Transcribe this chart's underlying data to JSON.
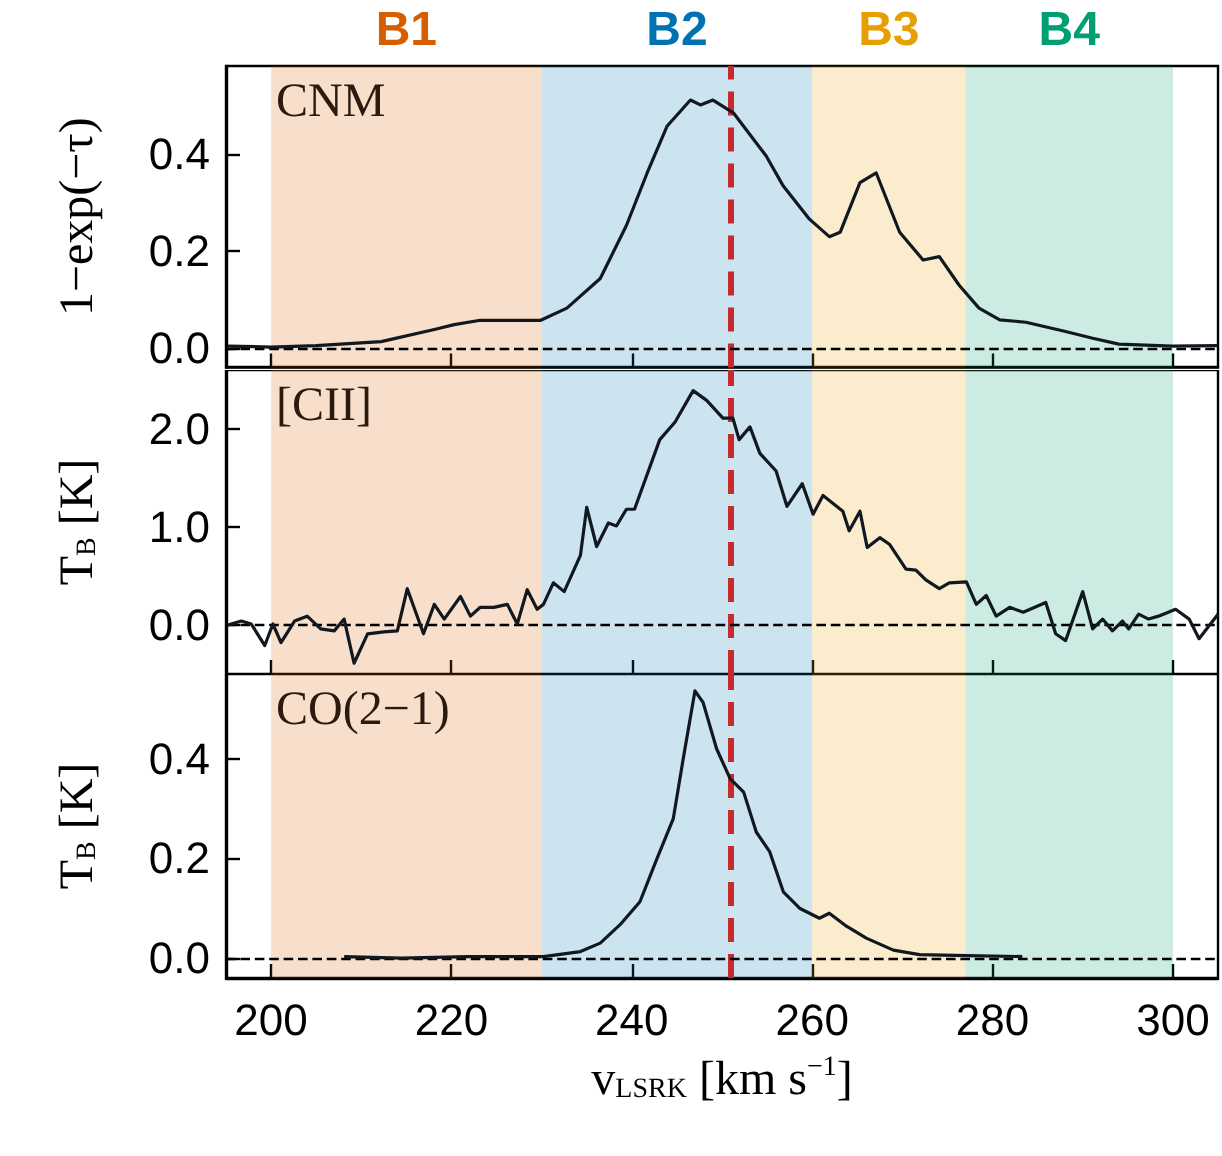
{
  "chart_data": [
    {
      "type": "line",
      "ylabel": "1−exp(−τ)",
      "annotations": [
        "CNM"
      ],
      "xlim": [
        195,
        305
      ],
      "xticks": [
        200,
        220,
        240,
        260,
        280,
        300
      ],
      "ylim": [
        -0.04,
        0.58
      ],
      "yticks": [
        {
          "value": 0,
          "label": "0.0"
        },
        {
          "value": 0.2,
          "label": "0.2"
        },
        {
          "value": 0.4,
          "label": "0.4"
        }
      ],
      "tick_labels": "y",
      "series": [
        {
          "color": "#111820",
          "x": [
            195.2,
            200,
            205,
            212.2,
            218.1,
            220.3,
            223.2,
            229.9,
            232.8,
            236.5,
            239.4,
            241.7,
            243.9,
            246.5,
            247.6,
            249.0,
            251.3,
            254.9,
            256.8,
            259.7,
            261.9,
            263.1,
            265.3,
            267.1,
            269.7,
            272.3,
            274.1,
            276.3,
            278.5,
            280.8,
            283.7,
            288.1,
            291.1,
            294.0,
            299.9,
            305
          ],
          "values": [
            0.004,
            0.002,
            0.005,
            0.013,
            0.038,
            0.048,
            0.057,
            0.057,
            0.082,
            0.143,
            0.252,
            0.36,
            0.456,
            0.51,
            0.5,
            0.51,
            0.483,
            0.395,
            0.333,
            0.265,
            0.229,
            0.238,
            0.34,
            0.36,
            0.238,
            0.181,
            0.188,
            0.129,
            0.082,
            0.058,
            0.053,
            0.034,
            0.02,
            0.008,
            0.004,
            0.005
          ]
        }
      ],
      "ref_lines": [
        {
          "axis": "x",
          "value": 251,
          "color": "#c62a2f",
          "line_style": "dashed"
        },
        {
          "axis": "y",
          "value": 0,
          "color": "#000000",
          "line_style": "dashed"
        }
      ],
      "bands": [
        {
          "axis": "x",
          "from": 200,
          "to": 230,
          "label": "B1",
          "color": "#d55e00"
        },
        {
          "axis": "x",
          "from": 230,
          "to": 260,
          "label": "B2",
          "color": "#0072b2"
        },
        {
          "axis": "x",
          "from": 260,
          "to": 277,
          "label": "B3",
          "color": "#e69f00"
        },
        {
          "axis": "x",
          "from": 277,
          "to": 300,
          "label": "B4",
          "color": "#009e73"
        }
      ]
    },
    {
      "type": "line",
      "ylabel": "T$_{B}$ [K]",
      "annotations": [
        "[CII]"
      ],
      "xlim": [
        195,
        305
      ],
      "xticks": [
        200,
        220,
        240,
        260,
        280,
        300
      ],
      "ylim": [
        -0.5,
        2.6
      ],
      "yticks": [
        {
          "value": 0,
          "label": "0.0"
        },
        {
          "value": 1,
          "label": "1.0"
        },
        {
          "value": 2,
          "label": "2.0"
        }
      ],
      "tick_labels": "y",
      "series": [
        {
          "color": "#111820",
          "x": [
            195.2,
            196.7,
            197.8,
            199.3,
            200.2,
            201.1,
            202.6,
            204.0,
            205.5,
            207.0,
            208.1,
            209.2,
            210.7,
            212.5,
            214.0,
            215.1,
            216.9,
            218.1,
            219.2,
            221.0,
            222.1,
            223.2,
            224.7,
            226.2,
            227.3,
            228.4,
            229.5,
            230.2,
            231.3,
            232.5,
            234.3,
            235.0,
            236.1,
            237.4,
            238.3,
            239.4,
            240.3,
            243.1,
            244.8,
            246.8,
            248.3,
            250.1,
            251.2,
            251.9,
            253.1,
            254.2,
            256.0,
            257.2,
            258.9,
            260.1,
            261.2,
            263.4,
            264.1,
            265.3,
            266.1,
            267.5,
            268.6,
            270.4,
            271.5,
            272.6,
            274.1,
            275.2,
            277.1,
            278.2,
            279.3,
            280.4,
            281.9,
            283.4,
            285.9,
            287.0,
            288.1,
            290.0,
            291.1,
            292.2,
            293.3,
            294.4,
            295.1,
            296.2,
            297.3,
            298.4,
            300.3,
            301.8,
            302.9,
            305.0
          ],
          "values": [
            0.0,
            0.04,
            0.01,
            -0.21,
            0.01,
            -0.18,
            0.04,
            0.09,
            -0.04,
            -0.06,
            0.06,
            -0.39,
            -0.09,
            -0.07,
            -0.06,
            0.37,
            -0.09,
            0.21,
            0.06,
            0.29,
            0.09,
            0.18,
            0.18,
            0.21,
            0.01,
            0.36,
            0.16,
            0.21,
            0.43,
            0.34,
            0.71,
            1.2,
            0.8,
            1.04,
            1.01,
            1.18,
            1.18,
            1.89,
            2.07,
            2.39,
            2.29,
            2.11,
            2.11,
            1.89,
            2.02,
            1.75,
            1.57,
            1.21,
            1.44,
            1.13,
            1.32,
            1.16,
            0.96,
            1.16,
            0.79,
            0.89,
            0.82,
            0.57,
            0.56,
            0.46,
            0.37,
            0.43,
            0.44,
            0.21,
            0.3,
            0.09,
            0.18,
            0.13,
            0.23,
            -0.09,
            -0.16,
            0.34,
            -0.04,
            0.06,
            -0.06,
            0.04,
            -0.04,
            0.11,
            0.06,
            0.09,
            0.16,
            0.06,
            -0.14,
            0.11
          ]
        }
      ],
      "ref_lines": [
        {
          "axis": "x",
          "value": 251,
          "color": "#c62a2f",
          "line_style": "dashed"
        },
        {
          "axis": "y",
          "value": 0,
          "color": "#000000",
          "line_style": "dashed"
        }
      ],
      "bands": [
        {
          "axis": "x",
          "from": 200,
          "to": 230,
          "color": "#d55e00"
        },
        {
          "axis": "x",
          "from": 230,
          "to": 260,
          "color": "#0072b2"
        },
        {
          "axis": "x",
          "from": 260,
          "to": 277,
          "color": "#e69f00"
        },
        {
          "axis": "x",
          "from": 277,
          "to": 300,
          "color": "#009e73"
        }
      ]
    },
    {
      "type": "line",
      "ylabel": "T$_{B}$ [K]",
      "xlabel": "v$_{LSRK}$ [km s$^{−1}$]",
      "annotations": [
        "CO(2−1)"
      ],
      "xlim": [
        195,
        305
      ],
      "xticks": [
        200,
        220,
        240,
        260,
        280,
        300
      ],
      "ylim": [
        -0.04,
        0.57
      ],
      "yticks": [
        {
          "value": 0,
          "label": "0.0"
        },
        {
          "value": 0.2,
          "label": "0.2"
        },
        {
          "value": 0.4,
          "label": "0.4"
        }
      ],
      "series": [
        {
          "color": "#111820",
          "x": [
            208.1,
            214.4,
            221.8,
            230.2,
            234.3,
            236.5,
            238.7,
            240.9,
            242.8,
            244.6,
            245.7,
            247.0,
            247.9,
            249.4,
            250.9,
            252.4,
            253.8,
            255.3,
            256.8,
            258.6,
            260.8,
            261.9,
            263.8,
            266.0,
            269.0,
            271.9,
            277.1,
            283.3
          ],
          "values": [
            0.003,
            0.0,
            0.003,
            0.003,
            0.013,
            0.03,
            0.067,
            0.113,
            0.2,
            0.28,
            0.4,
            0.536,
            0.513,
            0.42,
            0.36,
            0.333,
            0.253,
            0.213,
            0.133,
            0.1,
            0.08,
            0.09,
            0.064,
            0.04,
            0.016,
            0.007,
            0.005,
            0.003
          ]
        }
      ],
      "ref_lines": [
        {
          "axis": "x",
          "value": 251,
          "color": "#c62a2f",
          "line_style": "dashed"
        },
        {
          "axis": "y",
          "value": 0,
          "color": "#000000",
          "line_style": "dashed"
        }
      ],
      "bands": [
        {
          "axis": "x",
          "from": 200,
          "to": 230,
          "color": "#d55e00"
        },
        {
          "axis": "x",
          "from": 230,
          "to": 260,
          "color": "#0072b2"
        },
        {
          "axis": "x",
          "from": 260,
          "to": 277,
          "color": "#e69f00"
        },
        {
          "axis": "x",
          "from": 277,
          "to": 300,
          "color": "#009e73"
        }
      ]
    }
  ]
}
